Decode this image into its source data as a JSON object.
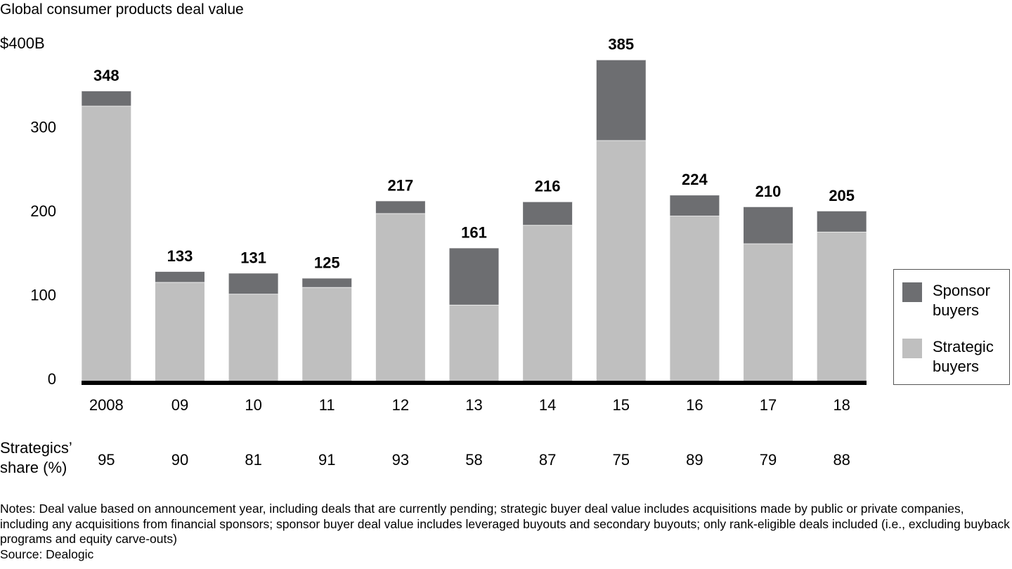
{
  "chart_data": {
    "type": "bar",
    "stacked": true,
    "title": "Global consumer products deal value",
    "categories": [
      "2008",
      "09",
      "10",
      "11",
      "12",
      "13",
      "14",
      "15",
      "16",
      "17",
      "18"
    ],
    "series": [
      {
        "name": "Strategic buyers",
        "color": "#bfbfbf",
        "values": [
          330,
          120,
          106,
          114,
          202,
          93,
          188,
          289,
          199,
          166,
          180
        ]
      },
      {
        "name": "Sponsor buyers",
        "color": "#6d6e71",
        "values": [
          18,
          13,
          25,
          11,
          15,
          68,
          28,
          96,
          25,
          44,
          25
        ]
      }
    ],
    "totals": [
      348,
      133,
      131,
      125,
      217,
      161,
      216,
      385,
      224,
      210,
      205
    ],
    "ylim": [
      0,
      400
    ],
    "yticks": [
      0,
      100,
      200,
      300,
      {
        "value": 400,
        "label": "$400B"
      }
    ],
    "share_label": "Strategics’ share (%)",
    "shares": [
      95,
      90,
      81,
      91,
      93,
      58,
      87,
      75,
      89,
      79,
      88
    ],
    "notes": "Notes: Deal value based on announcement year, including deals that are currently pending; strategic buyer deal value includes acquisitions made by public or private companies, including any acquisitions from financial sponsors; sponsor buyer deal value includes leveraged buyouts and secondary buyouts; only rank-eligible deals included (i.e., excluding buyback programs and equity carve-outs)",
    "source": "Source: Dealogic"
  }
}
